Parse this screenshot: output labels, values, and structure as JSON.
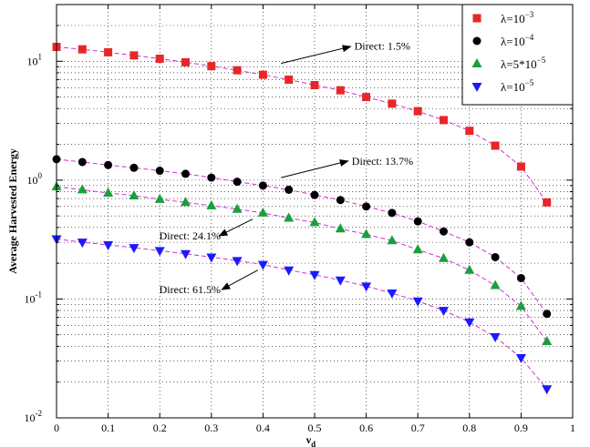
{
  "chart_data": {
    "type": "scatter",
    "xlabel": "ν",
    "xlabel_sub": "d",
    "ylabel": "Average Harvested Energy",
    "xlim": [
      0,
      1
    ],
    "ylim": [
      0.01,
      30
    ],
    "yscale": "log",
    "grid": true,
    "legend_position": "top-right",
    "xticks": [
      "0",
      "0.1",
      "0.2",
      "0.3",
      "0.4",
      "0.5",
      "0.6",
      "0.7",
      "0.8",
      "0.9",
      "1"
    ],
    "yticks": [
      {
        "base": "10",
        "exp": "-2"
      },
      {
        "base": "10",
        "exp": "-1"
      },
      {
        "base": "10",
        "exp": "0"
      },
      {
        "base": "10",
        "exp": "1"
      }
    ],
    "x": [
      0,
      0.05,
      0.1,
      0.15,
      0.2,
      0.25,
      0.3,
      0.35,
      0.4,
      0.45,
      0.5,
      0.55,
      0.6,
      0.65,
      0.7,
      0.75,
      0.8,
      0.85,
      0.9,
      0.95
    ],
    "series": [
      {
        "name_base": "λ=10",
        "name_exp": "−3",
        "marker": "square",
        "color": "#e8262a",
        "values": [
          13.2,
          12.6,
          11.9,
          11.2,
          10.5,
          9.8,
          9.1,
          8.4,
          7.7,
          7.0,
          6.3,
          5.7,
          5.0,
          4.4,
          3.8,
          3.2,
          2.6,
          1.95,
          1.3,
          0.65
        ]
      },
      {
        "name_base": "λ=10",
        "name_exp": "−4",
        "marker": "circle",
        "color": "#000000",
        "values": [
          1.5,
          1.42,
          1.34,
          1.27,
          1.2,
          1.13,
          1.05,
          0.97,
          0.9,
          0.83,
          0.75,
          0.68,
          0.6,
          0.53,
          0.45,
          0.37,
          0.3,
          0.225,
          0.15,
          0.075
        ]
      },
      {
        "name_base": "λ=5*10",
        "name_exp": "−5",
        "marker": "triangle-up",
        "color": "#17a03c",
        "values": [
          0.88,
          0.83,
          0.78,
          0.74,
          0.69,
          0.65,
          0.61,
          0.57,
          0.53,
          0.48,
          0.44,
          0.39,
          0.35,
          0.31,
          0.26,
          0.22,
          0.175,
          0.13,
          0.087,
          0.044
        ]
      },
      {
        "name_base": "λ=10",
        "name_exp": "−5",
        "marker": "triangle-down",
        "color": "#1a1aff",
        "values": [
          0.32,
          0.3,
          0.285,
          0.27,
          0.255,
          0.24,
          0.225,
          0.21,
          0.195,
          0.175,
          0.16,
          0.144,
          0.128,
          0.112,
          0.096,
          0.08,
          0.064,
          0.048,
          0.032,
          0.0175
        ]
      }
    ],
    "fit_color": "#d12ed1",
    "annotations": [
      {
        "text": "Direct: 1.5%",
        "x_text": 0.57,
        "y_text": 13.5,
        "x_tip": 0.57,
        "y_tip": 13.5,
        "arrow_from": [
          0.445,
          9.8
        ],
        "anchor": "start"
      },
      {
        "text": "Direct: 13.7%",
        "x_text": 0.565,
        "y_text": 1.45,
        "anchor": "start"
      },
      {
        "text": "Direct: 24.1%",
        "x_text": 0.325,
        "y_text": 0.34,
        "anchor": "end"
      },
      {
        "text": "Direct: 61.5%",
        "x_text": 0.325,
        "y_text": 0.12,
        "anchor": "end"
      }
    ]
  }
}
